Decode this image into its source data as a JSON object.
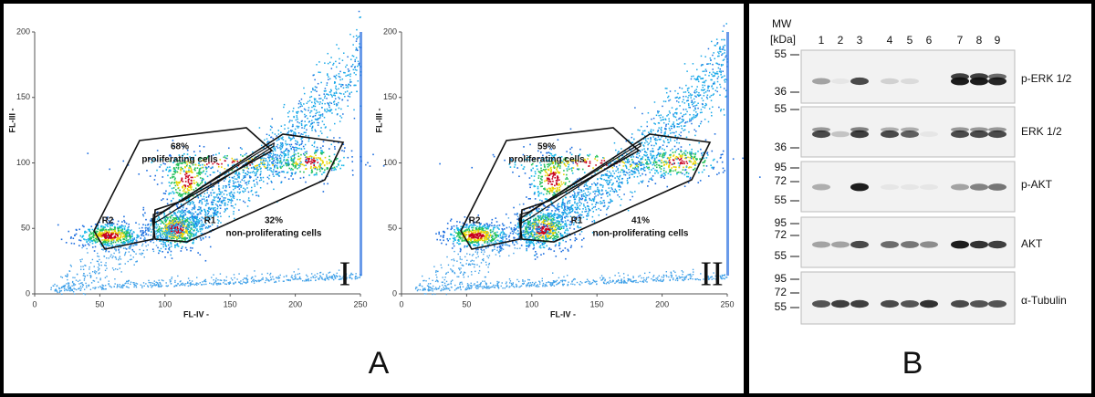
{
  "panel_a": {
    "label": "A",
    "x_axis": {
      "label": "FL-IV -",
      "ticks": [
        0,
        50,
        100,
        150,
        200,
        250
      ]
    },
    "y_axis": {
      "label": "FL-III -",
      "ticks": [
        0,
        50,
        100,
        150,
        200
      ]
    },
    "plots": [
      {
        "numeral": "I",
        "gates": [
          {
            "name": "R2",
            "percent": "68%",
            "description": "proliferating cells"
          },
          {
            "name": "R1",
            "percent": "32%",
            "description": "non-proliferating cells"
          }
        ]
      },
      {
        "numeral": "II",
        "gates": [
          {
            "name": "R2",
            "percent": "59%",
            "description": "proliferating cells"
          },
          {
            "name": "R1",
            "percent": "41%",
            "description": "non-proliferating cells"
          }
        ]
      }
    ]
  },
  "panel_b": {
    "label": "B",
    "mw_label": "MW",
    "unit_label": "[kDa]",
    "lanes": [
      "1",
      "2",
      "3",
      "4",
      "5",
      "6",
      "7",
      "8",
      "9"
    ],
    "blots": [
      {
        "protein": "p-ERK 1/2",
        "markers": [
          "55",
          "36"
        ]
      },
      {
        "protein": "ERK 1/2",
        "markers": [
          "55",
          "36"
        ]
      },
      {
        "protein": "p-AKT",
        "markers": [
          "95",
          "72",
          "55"
        ]
      },
      {
        "protein": "AKT",
        "markers": [
          "95",
          "72",
          "55"
        ]
      },
      {
        "protein": "α-Tubulin",
        "markers": [
          "95",
          "72",
          "55"
        ]
      }
    ]
  }
}
